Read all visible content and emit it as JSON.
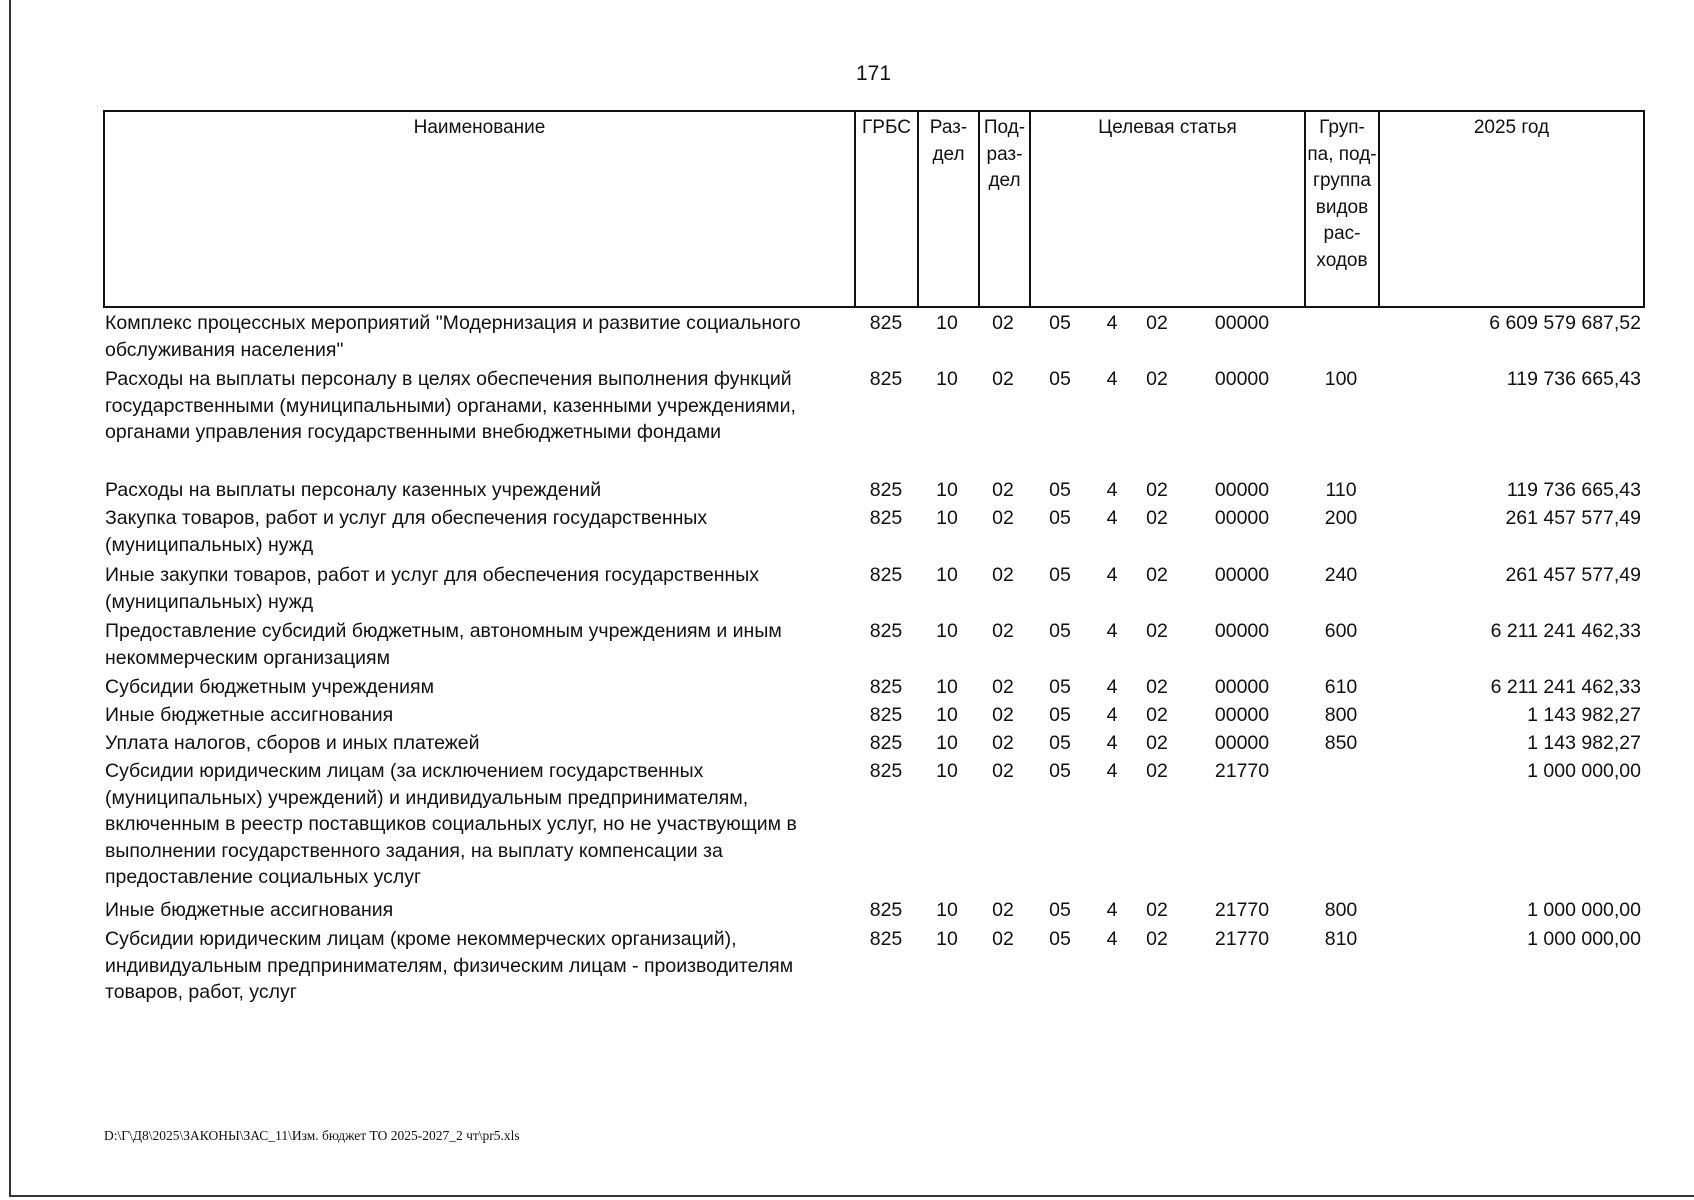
{
  "page_number": "171",
  "header": {
    "name": "Наименование",
    "grbs": "ГРБС",
    "razdel": "Раз-\nдел",
    "podrazdel": "Под-\nраз-\nдел",
    "target": "Целевая статья",
    "group": "Груп-\nпа, под-\nгруппа\nвидов\nрас-\nходов",
    "year": "2025 год"
  },
  "rows": [
    {
      "name": "Комплекс процессных мероприятий \"Модернизация и развитие социального\nобслуживания населения\"",
      "grbs": "825",
      "rz": "10",
      "prz": "02",
      "t1": "05",
      "t2": "4",
      "t3": "02",
      "t4": "00000",
      "vr": "",
      "amount": "6 609 579 687,52"
    },
    {
      "name": "Расходы на выплаты персоналу в целях обеспечения выполнения функций\nгосударственными (муниципальными) органами, казенными учреждениями,\nорганами управления государственными внебюджетными фондами",
      "grbs": "825",
      "rz": "10",
      "prz": "02",
      "t1": "05",
      "t2": "4",
      "t3": "02",
      "t4": "00000",
      "vr": "100",
      "amount": "119 736 665,43"
    },
    {
      "name": "Расходы на выплаты персоналу казенных учреждений",
      "grbs": "825",
      "rz": "10",
      "prz": "02",
      "t1": "05",
      "t2": "4",
      "t3": "02",
      "t4": "00000",
      "vr": "110",
      "amount": "119 736 665,43"
    },
    {
      "name": "Закупка товаров, работ и услуг для обеспечения государственных\n(муниципальных) нужд",
      "grbs": "825",
      "rz": "10",
      "prz": "02",
      "t1": "05",
      "t2": "4",
      "t3": "02",
      "t4": "00000",
      "vr": "200",
      "amount": "261 457 577,49"
    },
    {
      "name": "Иные закупки товаров, работ и услуг для обеспечения государственных\n(муниципальных) нужд",
      "grbs": "825",
      "rz": "10",
      "prz": "02",
      "t1": "05",
      "t2": "4",
      "t3": "02",
      "t4": "00000",
      "vr": "240",
      "amount": "261 457 577,49"
    },
    {
      "name": "Предоставление субсидий бюджетным, автономным учреждениям и иным\nнекоммерческим организациям",
      "grbs": "825",
      "rz": "10",
      "prz": "02",
      "t1": "05",
      "t2": "4",
      "t3": "02",
      "t4": "00000",
      "vr": "600",
      "amount": "6 211 241 462,33"
    },
    {
      "name": "Субсидии бюджетным учреждениям",
      "grbs": "825",
      "rz": "10",
      "prz": "02",
      "t1": "05",
      "t2": "4",
      "t3": "02",
      "t4": "00000",
      "vr": "610",
      "amount": "6 211 241 462,33"
    },
    {
      "name": "Иные бюджетные ассигнования",
      "grbs": "825",
      "rz": "10",
      "prz": "02",
      "t1": "05",
      "t2": "4",
      "t3": "02",
      "t4": "00000",
      "vr": "800",
      "amount": "1 143 982,27"
    },
    {
      "name": "Уплата налогов, сборов и иных платежей",
      "grbs": "825",
      "rz": "10",
      "prz": "02",
      "t1": "05",
      "t2": "4",
      "t3": "02",
      "t4": "00000",
      "vr": "850",
      "amount": "1 143 982,27"
    },
    {
      "name": "Субсидии юридическим лицам (за исключением государственных\n(муниципальных) учреждений) и индивидуальным предпринимателям,\nвключенным в реестр поставщиков социальных услуг, но не участвующим в\nвыполнении государственного задания, на выплату компенсации за\nпредоставление социальных услуг",
      "grbs": "825",
      "rz": "10",
      "prz": "02",
      "t1": "05",
      "t2": "4",
      "t3": "02",
      "t4": "21770",
      "vr": "",
      "amount": "1 000 000,00"
    },
    {
      "name": "Иные бюджетные ассигнования",
      "grbs": "825",
      "rz": "10",
      "prz": "02",
      "t1": "05",
      "t2": "4",
      "t3": "02",
      "t4": "21770",
      "vr": "800",
      "amount": "1 000 000,00"
    },
    {
      "name": "Субсидии юридическим лицам (кроме некоммерческих организаций),\nиндивидуальным предпринимателям, физическим лицам - производителям\nтоваров, работ, услуг",
      "grbs": "825",
      "rz": "10",
      "prz": "02",
      "t1": "05",
      "t2": "4",
      "t3": "02",
      "t4": "21770",
      "vr": "810",
      "amount": "1 000 000,00"
    }
  ],
  "footer_path": "D:\\Г\\Д8\\2025\\ЗАКОНЫ\\ЗАС_11\\Изм. бюджет ТО 2025-2027_2 чт\\pr5.xls"
}
